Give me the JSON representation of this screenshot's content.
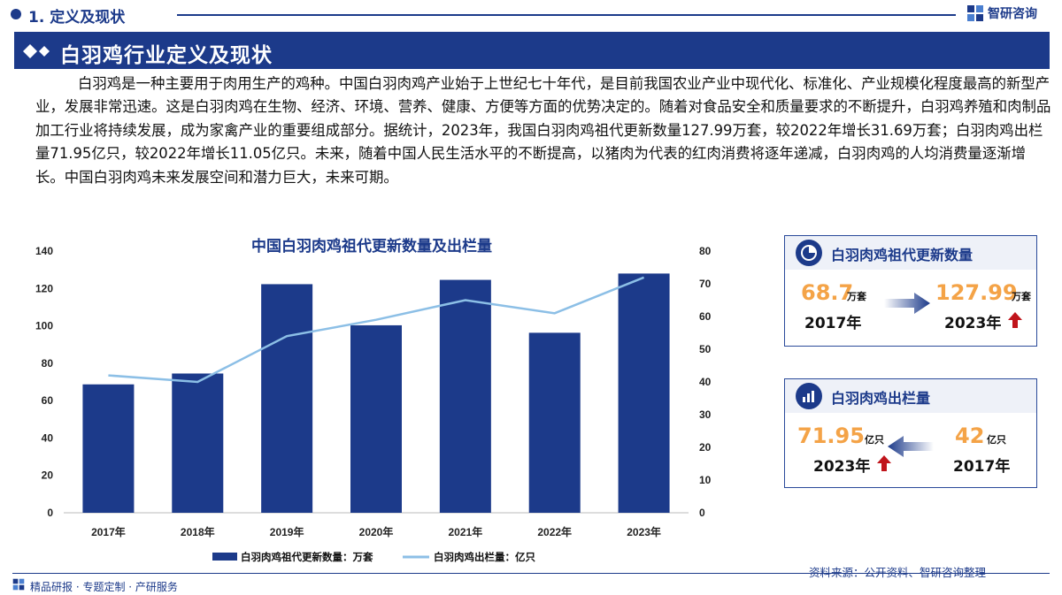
{
  "header": {
    "section_label": "1. 定义及现状",
    "brand_name": "智研咨询",
    "title": "白羽鸡行业定义及现状"
  },
  "intro_text": "白羽鸡是一种主要用于肉用生产的鸡种。中国白羽肉鸡产业始于上世纪七十年代，是目前我国农业产业中现代化、标准化、产业规模化程度最高的新型产业，发展非常迅速。这是白羽肉鸡在生物、经济、环境、营养、健康、方便等方面的优势决定的。随着对食品安全和质量要求的不断提升，白羽鸡养殖和肉制品加工行业将持续发展，成为家禽产业的重要组成部分。据统计，2023年，我国白羽肉鸡祖代更新数量127.99万套，较2022年增长31.69万套；白羽肉鸡出栏量71.95亿只，较2022年增长11.05亿只。未来，随着中国人民生活水平的不断提高，以猪肉为代表的红肉消费将逐年递减，白羽肉鸡的人均消费量逐渐增长。中国白羽肉鸡未来发展空间和潜力巨大，未来可期。",
  "chart_data": {
    "type": "bar",
    "title": "中国白羽肉鸡祖代更新数量及出栏量",
    "categories": [
      "2017年",
      "2018年",
      "2019年",
      "2020年",
      "2021年",
      "2022年",
      "2023年"
    ],
    "series": [
      {
        "name": "白羽肉鸡祖代更新数量：万套",
        "type": "bar",
        "axis": "left",
        "values": [
          68.7,
          74.5,
          122.3,
          100.3,
          124.6,
          96.3,
          127.99
        ]
      },
      {
        "name": "白羽肉鸡出栏量：亿只",
        "type": "line",
        "axis": "right",
        "values": [
          42,
          40,
          54,
          59,
          65,
          61,
          71.95
        ]
      }
    ],
    "ylim_left": [
      0,
      140
    ],
    "ylim_right": [
      0,
      80
    ],
    "yticks_left": [
      "0",
      "20",
      "40",
      "60",
      "80",
      "100",
      "120",
      "140"
    ],
    "yticks_right": [
      "0",
      "10",
      "20",
      "30",
      "40",
      "50",
      "60",
      "70",
      "80"
    ],
    "legend_position": "bottom",
    "bar_color": "#1c3a8a",
    "line_color": "#8cbfe6"
  },
  "card_breeding": {
    "title": "白羽肉鸡祖代更新数量",
    "from_value": "68.7",
    "from_unit": "万套",
    "from_year": "2017年",
    "to_value": "127.99",
    "to_unit": "万套",
    "to_year": "2023年"
  },
  "card_slaughter": {
    "title": "白羽肉鸡出栏量",
    "left_value": "71.95",
    "left_unit": "亿只",
    "left_year": "2023年",
    "right_value": "42",
    "right_unit": "亿只",
    "right_year": "2017年"
  },
  "footer": {
    "tagline": "精品研报 · 专题定制 · 产研服务",
    "source": "资料来源：公开资料、智研咨询整理"
  },
  "colors": {
    "brand_navy": "#1c3a8a",
    "highlight_orange": "#f4a347",
    "arrow_red": "#c0141b"
  }
}
